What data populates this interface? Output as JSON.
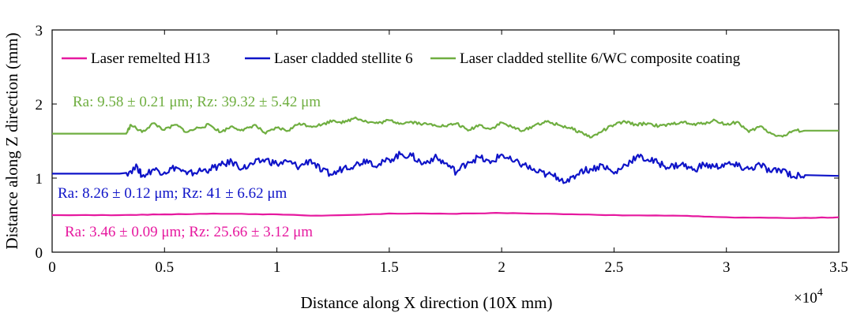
{
  "chart_data": {
    "type": "line",
    "xlabel": "Distance along X direction (10X mm)",
    "ylabel": "Distance along Z direction (mm)",
    "x_exponent_label": "×10",
    "x_exponent_power": "4",
    "xlim": [
      0,
      3.5
    ],
    "ylim": [
      0,
      3
    ],
    "xticks": [
      0,
      0.5,
      1,
      1.5,
      2,
      2.5,
      3,
      3.5
    ],
    "xtick_labels": [
      "0",
      "0.5",
      "1",
      "1.5",
      "2",
      "2.5",
      "3",
      "3.5"
    ],
    "yticks": [
      0,
      1,
      2,
      3
    ],
    "ytick_labels": [
      "0",
      "1",
      "2",
      "3"
    ],
    "legend_position": "top",
    "grid": false,
    "series": [
      {
        "name": "Laser remelted H13",
        "color": "#e6199f",
        "annotation": "Ra: 3.46 ± 0.09 μm; Rz: 25.66 ± 3.12 μm",
        "x": [
          0,
          0.3,
          0.5,
          0.75,
          1.0,
          1.2,
          1.5,
          1.8,
          2.0,
          2.2,
          2.5,
          2.8,
          3.0,
          3.3,
          3.5
        ],
        "y": [
          0.5,
          0.5,
          0.51,
          0.52,
          0.51,
          0.49,
          0.52,
          0.52,
          0.53,
          0.52,
          0.5,
          0.49,
          0.47,
          0.46,
          0.47
        ]
      },
      {
        "name": "Laser cladded stellite 6",
        "color": "#0f14c8",
        "annotation": "Ra: 8.26 ± 0.12 μm; Rz: 41 ± 6.62 μm",
        "x": [
          0,
          0.3,
          0.33,
          0.38,
          0.4,
          0.45,
          0.5,
          0.55,
          0.6,
          0.65,
          0.7,
          0.75,
          0.8,
          0.85,
          0.9,
          0.95,
          1.0,
          1.05,
          1.1,
          1.15,
          1.2,
          1.25,
          1.3,
          1.35,
          1.4,
          1.45,
          1.5,
          1.55,
          1.6,
          1.65,
          1.7,
          1.75,
          1.8,
          1.85,
          1.9,
          1.95,
          2.0,
          2.05,
          2.1,
          2.15,
          2.2,
          2.25,
          2.3,
          2.35,
          2.4,
          2.45,
          2.5,
          2.55,
          2.6,
          2.65,
          2.7,
          2.75,
          2.8,
          2.85,
          2.9,
          2.95,
          3.0,
          3.05,
          3.1,
          3.15,
          3.2,
          3.25,
          3.3,
          3.35,
          3.5
        ],
        "y": [
          1.06,
          1.06,
          1.07,
          1.15,
          1.02,
          1.12,
          1.08,
          1.15,
          1.05,
          1.09,
          1.12,
          1.17,
          1.22,
          1.13,
          1.2,
          1.25,
          1.19,
          1.22,
          1.15,
          1.25,
          1.09,
          1.05,
          1.15,
          1.18,
          1.25,
          1.17,
          1.25,
          1.32,
          1.3,
          1.19,
          1.28,
          1.2,
          1.08,
          1.22,
          1.28,
          1.2,
          1.32,
          1.22,
          1.18,
          1.09,
          1.05,
          1.01,
          0.95,
          1.1,
          1.12,
          1.18,
          1.06,
          1.18,
          1.29,
          1.25,
          1.2,
          1.15,
          1.19,
          1.11,
          1.18,
          1.15,
          1.19,
          1.16,
          1.12,
          1.18,
          1.08,
          1.12,
          1.02,
          1.04,
          1.03
        ]
      },
      {
        "name": "Laser cladded stellite 6/WC composite coating",
        "color": "#6fae40",
        "annotation": "Ra: 9.58 ± 0.21 μm; Rz: 39.32 ± 5.42 μm",
        "x": [
          0,
          0.33,
          0.35,
          0.4,
          0.45,
          0.5,
          0.55,
          0.6,
          0.65,
          0.7,
          0.75,
          0.8,
          0.85,
          0.9,
          0.95,
          1.0,
          1.05,
          1.1,
          1.15,
          1.2,
          1.25,
          1.3,
          1.35,
          1.4,
          1.45,
          1.5,
          1.55,
          1.6,
          1.65,
          1.7,
          1.75,
          1.8,
          1.85,
          1.9,
          1.95,
          2.0,
          2.05,
          2.1,
          2.15,
          2.2,
          2.25,
          2.3,
          2.35,
          2.4,
          2.45,
          2.5,
          2.55,
          2.6,
          2.65,
          2.7,
          2.75,
          2.8,
          2.85,
          2.9,
          2.95,
          3.0,
          3.05,
          3.1,
          3.15,
          3.2,
          3.25,
          3.3,
          3.35,
          3.5
        ],
        "y": [
          1.6,
          1.6,
          1.72,
          1.62,
          1.74,
          1.65,
          1.72,
          1.62,
          1.68,
          1.72,
          1.62,
          1.7,
          1.64,
          1.72,
          1.6,
          1.68,
          1.64,
          1.74,
          1.7,
          1.72,
          1.78,
          1.75,
          1.82,
          1.76,
          1.74,
          1.78,
          1.74,
          1.76,
          1.73,
          1.72,
          1.7,
          1.74,
          1.64,
          1.72,
          1.66,
          1.75,
          1.68,
          1.64,
          1.72,
          1.76,
          1.72,
          1.68,
          1.62,
          1.55,
          1.64,
          1.72,
          1.76,
          1.72,
          1.74,
          1.7,
          1.72,
          1.76,
          1.72,
          1.74,
          1.78,
          1.72,
          1.76,
          1.62,
          1.7,
          1.6,
          1.56,
          1.64,
          1.64,
          1.64
        ]
      }
    ]
  }
}
